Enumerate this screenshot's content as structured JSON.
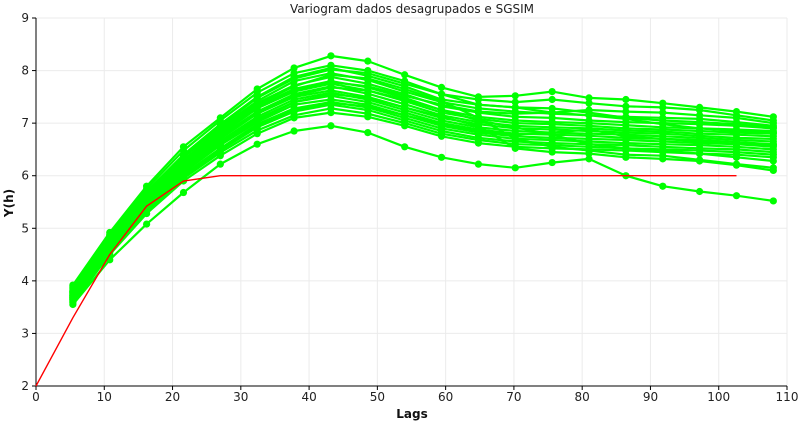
{
  "chart_data": {
    "type": "line",
    "title": "Variogram dados desagrupados e SGSIM",
    "xlabel": "Lags",
    "ylabel": "Y(h)",
    "xlim": [
      0,
      110
    ],
    "ylim": [
      2,
      9
    ],
    "xticks": [
      0,
      10,
      20,
      30,
      40,
      50,
      60,
      70,
      80,
      90,
      100,
      110
    ],
    "yticks": [
      2,
      3,
      4,
      5,
      6,
      7,
      8,
      9
    ],
    "grid": true,
    "legend": "none",
    "colors": {
      "simulations": "#00ff00",
      "model": "#ff0000"
    },
    "sim_x": [
      5.4,
      10.8,
      16.2,
      21.6,
      27.0,
      32.4,
      37.8,
      43.2,
      48.6,
      54.0,
      59.4,
      64.8,
      70.2,
      75.6,
      81.0,
      86.4,
      91.8,
      97.2,
      102.6,
      108.0
    ],
    "series": [
      {
        "values": [
          3.55,
          4.4,
          5.08,
          5.68,
          6.22,
          6.6,
          6.85,
          6.95,
          6.82,
          6.55,
          6.35,
          6.22,
          6.15,
          6.25,
          6.32,
          6.0,
          5.8,
          5.7,
          5.62,
          5.52
        ]
      },
      {
        "values": [
          3.92,
          4.92,
          5.8,
          6.55,
          7.1,
          7.65,
          8.05,
          8.28,
          8.18,
          7.92,
          7.68,
          7.5,
          7.52,
          7.6,
          7.48,
          7.45,
          7.38,
          7.3,
          7.22,
          7.12
        ]
      },
      {
        "values": [
          3.88,
          4.88,
          5.75,
          6.48,
          7.05,
          7.58,
          7.95,
          8.1,
          8.0,
          7.8,
          7.55,
          7.45,
          7.4,
          7.45,
          7.38,
          7.32,
          7.3,
          7.25,
          7.15,
          7.05
        ]
      },
      {
        "values": [
          3.85,
          4.85,
          5.7,
          6.4,
          6.98,
          7.5,
          7.88,
          8.05,
          7.9,
          7.7,
          7.45,
          7.35,
          7.3,
          7.2,
          7.25,
          7.22,
          7.2,
          7.15,
          7.1,
          7.0
        ]
      },
      {
        "values": [
          3.82,
          4.8,
          5.65,
          6.35,
          6.92,
          7.42,
          7.8,
          7.95,
          7.82,
          7.6,
          7.4,
          7.28,
          7.22,
          7.18,
          7.15,
          7.12,
          7.1,
          7.08,
          7.02,
          6.95
        ]
      },
      {
        "values": [
          3.8,
          4.76,
          5.6,
          6.3,
          6.88,
          7.38,
          7.72,
          7.88,
          7.75,
          7.55,
          7.32,
          7.2,
          7.12,
          7.1,
          7.05,
          7.02,
          7.0,
          6.98,
          6.95,
          6.9
        ]
      },
      {
        "values": [
          3.78,
          4.74,
          5.58,
          6.26,
          6.82,
          7.32,
          7.65,
          7.8,
          7.68,
          7.48,
          7.25,
          7.12,
          7.05,
          7.02,
          7.0,
          6.96,
          6.92,
          6.9,
          6.88,
          6.85
        ]
      },
      {
        "values": [
          3.76,
          4.72,
          5.55,
          6.22,
          6.78,
          7.28,
          7.6,
          7.75,
          7.62,
          7.42,
          7.2,
          7.08,
          7.0,
          6.98,
          6.95,
          6.9,
          6.88,
          6.85,
          6.82,
          6.8
        ]
      },
      {
        "values": [
          3.74,
          4.7,
          5.52,
          6.18,
          6.75,
          7.22,
          7.55,
          7.7,
          7.56,
          7.36,
          7.15,
          7.02,
          6.95,
          6.92,
          6.9,
          6.86,
          6.84,
          6.8,
          6.78,
          6.75
        ]
      },
      {
        "values": [
          3.72,
          4.68,
          5.5,
          6.15,
          6.7,
          7.18,
          7.5,
          7.62,
          7.5,
          7.3,
          7.1,
          6.98,
          6.9,
          6.88,
          6.85,
          6.82,
          6.8,
          6.76,
          6.72,
          6.7
        ]
      },
      {
        "values": [
          3.7,
          4.66,
          5.48,
          6.12,
          6.66,
          7.12,
          7.45,
          7.58,
          7.45,
          7.25,
          7.05,
          6.92,
          6.85,
          6.82,
          6.8,
          6.78,
          6.75,
          6.72,
          6.68,
          6.65
        ]
      },
      {
        "values": [
          3.68,
          4.64,
          5.45,
          6.1,
          6.62,
          7.08,
          7.4,
          7.52,
          7.4,
          7.2,
          7.0,
          6.88,
          6.8,
          6.78,
          6.76,
          6.72,
          6.7,
          6.68,
          6.64,
          6.6
        ]
      },
      {
        "values": [
          3.66,
          4.62,
          5.42,
          6.06,
          6.58,
          7.02,
          7.35,
          7.45,
          7.35,
          7.15,
          6.95,
          6.82,
          6.75,
          6.72,
          6.7,
          6.68,
          6.65,
          6.62,
          6.6,
          6.55
        ]
      },
      {
        "values": [
          3.64,
          4.6,
          5.4,
          6.02,
          6.52,
          6.98,
          7.28,
          7.4,
          7.3,
          7.1,
          6.9,
          6.78,
          6.7,
          6.68,
          6.65,
          6.62,
          6.6,
          6.58,
          6.55,
          6.5
        ]
      },
      {
        "values": [
          3.62,
          4.56,
          5.36,
          5.98,
          6.48,
          6.92,
          7.22,
          7.35,
          7.25,
          7.05,
          6.85,
          6.72,
          6.65,
          6.62,
          6.6,
          6.58,
          6.55,
          6.52,
          6.5,
          6.45
        ]
      },
      {
        "values": [
          3.6,
          4.54,
          5.32,
          5.95,
          6.44,
          6.86,
          7.15,
          7.28,
          7.18,
          7.0,
          6.8,
          6.68,
          6.6,
          6.58,
          6.55,
          6.52,
          6.5,
          6.48,
          6.45,
          6.4
        ]
      },
      {
        "values": [
          3.58,
          4.5,
          5.28,
          5.9,
          6.38,
          6.8,
          7.1,
          7.2,
          7.12,
          6.95,
          6.75,
          6.62,
          6.55,
          6.52,
          6.5,
          6.48,
          6.45,
          6.42,
          6.4,
          6.35
        ]
      },
      {
        "values": [
          3.75,
          4.78,
          5.62,
          6.28,
          6.85,
          7.35,
          7.7,
          7.92,
          7.85,
          7.65,
          7.42,
          7.1,
          6.7,
          6.55,
          6.48,
          6.4,
          6.38,
          6.3,
          6.22,
          6.15
        ]
      },
      {
        "values": [
          3.68,
          4.62,
          5.45,
          6.08,
          6.6,
          7.05,
          7.4,
          7.55,
          7.48,
          7.3,
          7.12,
          6.95,
          6.52,
          6.45,
          6.42,
          6.35,
          6.32,
          6.28,
          6.2,
          6.1
        ]
      },
      {
        "values": [
          3.72,
          4.7,
          5.55,
          6.2,
          6.72,
          7.2,
          7.52,
          7.68,
          7.62,
          7.45,
          7.25,
          7.05,
          6.92,
          6.78,
          6.6,
          6.52,
          6.48,
          6.42,
          6.35,
          6.28
        ]
      },
      {
        "values": [
          3.8,
          4.82,
          5.68,
          6.38,
          6.95,
          7.48,
          7.85,
          8.02,
          7.95,
          7.75,
          7.55,
          7.35,
          7.3,
          7.28,
          7.2,
          7.1,
          7.05,
          7.02,
          6.98,
          6.92
        ]
      },
      {
        "values": [
          3.65,
          4.58,
          5.38,
          6.0,
          6.5,
          6.95,
          7.25,
          7.38,
          7.32,
          7.15,
          6.98,
          6.85,
          6.78,
          6.82,
          6.88,
          6.75,
          6.7,
          6.65,
          6.6,
          6.58
        ]
      },
      {
        "values": [
          3.78,
          4.75,
          5.6,
          6.25,
          6.8,
          7.3,
          7.62,
          7.78,
          7.7,
          7.52,
          7.35,
          7.22,
          7.18,
          7.2,
          7.15,
          7.08,
          6.98,
          6.9,
          6.85,
          6.82
        ]
      }
    ],
    "model": {
      "x": [
        0,
        5.4,
        10.8,
        16.2,
        21.6,
        27.0,
        32.4,
        37.8,
        43.2,
        48.6,
        54.0,
        59.4,
        64.8,
        70.2,
        75.6,
        81.0,
        86.4,
        91.8,
        97.2,
        102.6
      ],
      "values": [
        2.0,
        3.3,
        4.5,
        5.42,
        5.9,
        6.0,
        6.0,
        6.0,
        6.0,
        6.0,
        6.0,
        6.0,
        6.0,
        6.0,
        6.0,
        6.0,
        6.0,
        6.0,
        6.0,
        6.0
      ]
    }
  }
}
